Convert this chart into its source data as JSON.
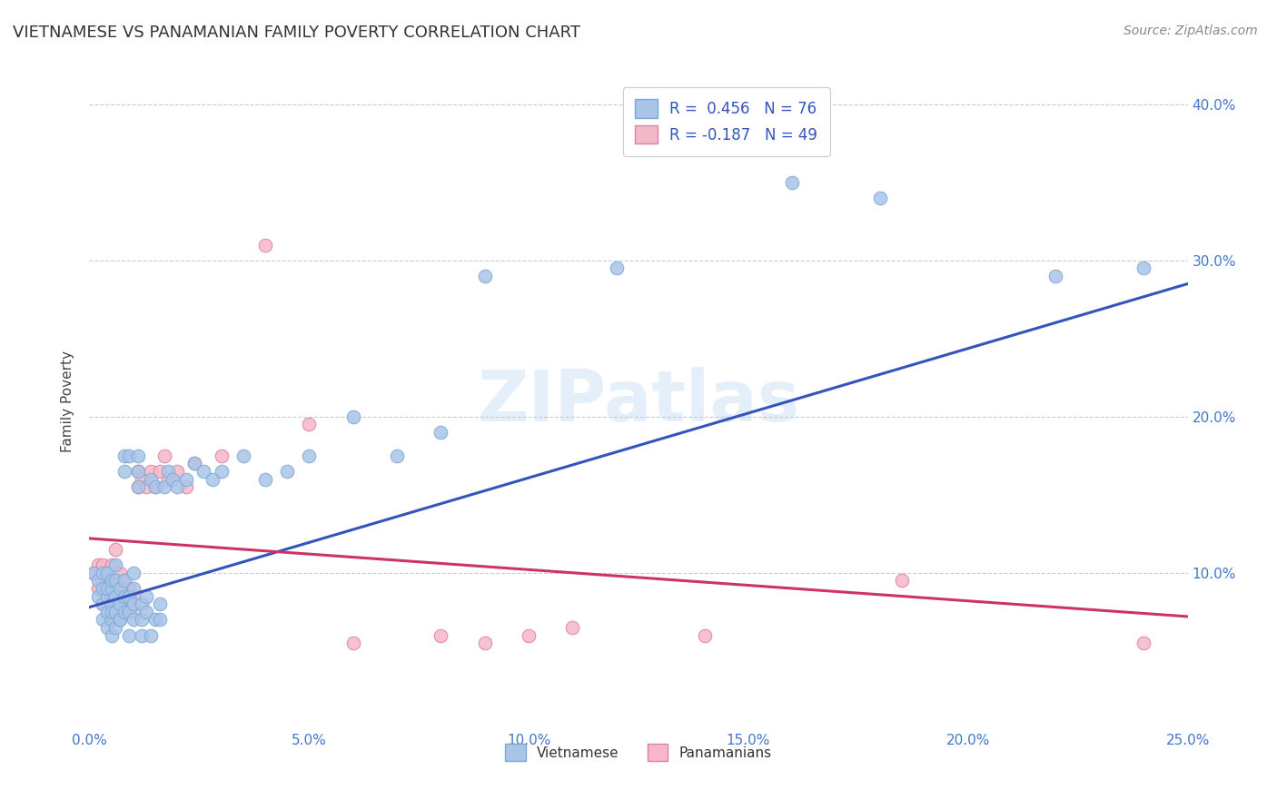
{
  "title": "VIETNAMESE VS PANAMANIAN FAMILY POVERTY CORRELATION CHART",
  "source": "Source: ZipAtlas.com",
  "ylabel": "Family Poverty",
  "xlim": [
    0.0,
    0.25
  ],
  "ylim": [
    0.0,
    0.42
  ],
  "xticks": [
    0.0,
    0.05,
    0.1,
    0.15,
    0.2,
    0.25
  ],
  "yticks": [
    0.0,
    0.1,
    0.2,
    0.3,
    0.4
  ],
  "xtick_labels": [
    "0.0%",
    "5.0%",
    "10.0%",
    "15.0%",
    "20.0%",
    "25.0%"
  ],
  "ytick_labels_right": [
    "",
    "10.0%",
    "20.0%",
    "30.0%",
    "40.0%"
  ],
  "viet_color": "#aac4e8",
  "viet_edge_color": "#7aaad4",
  "pan_color": "#f5b8c8",
  "pan_edge_color": "#e080a0",
  "line_viet_color": "#3355bb",
  "line_pan_color": "#cc3366",
  "R_viet": 0.456,
  "N_viet": 76,
  "R_pan": -0.187,
  "N_pan": 49,
  "watermark": "ZIPatlas",
  "viet_line_x0": 0.0,
  "viet_line_y0": 0.078,
  "viet_line_x1": 0.25,
  "viet_line_y1": 0.285,
  "pan_line_x0": 0.0,
  "pan_line_y0": 0.122,
  "pan_line_x1": 0.25,
  "pan_line_y1": 0.072,
  "viet_scatter_x": [
    0.001,
    0.002,
    0.002,
    0.003,
    0.003,
    0.003,
    0.003,
    0.004,
    0.004,
    0.004,
    0.004,
    0.004,
    0.005,
    0.005,
    0.005,
    0.005,
    0.005,
    0.005,
    0.006,
    0.006,
    0.006,
    0.006,
    0.006,
    0.007,
    0.007,
    0.007,
    0.007,
    0.008,
    0.008,
    0.008,
    0.008,
    0.008,
    0.009,
    0.009,
    0.009,
    0.009,
    0.01,
    0.01,
    0.01,
    0.01,
    0.011,
    0.011,
    0.011,
    0.012,
    0.012,
    0.012,
    0.013,
    0.013,
    0.014,
    0.014,
    0.015,
    0.015,
    0.016,
    0.016,
    0.017,
    0.018,
    0.019,
    0.02,
    0.022,
    0.024,
    0.026,
    0.028,
    0.03,
    0.035,
    0.04,
    0.045,
    0.05,
    0.06,
    0.07,
    0.08,
    0.09,
    0.12,
    0.16,
    0.18,
    0.22,
    0.24
  ],
  "viet_scatter_y": [
    0.1,
    0.085,
    0.095,
    0.08,
    0.09,
    0.1,
    0.07,
    0.075,
    0.085,
    0.09,
    0.1,
    0.065,
    0.06,
    0.07,
    0.08,
    0.09,
    0.095,
    0.075,
    0.065,
    0.075,
    0.085,
    0.095,
    0.105,
    0.07,
    0.08,
    0.09,
    0.07,
    0.075,
    0.085,
    0.095,
    0.165,
    0.175,
    0.06,
    0.075,
    0.085,
    0.175,
    0.07,
    0.08,
    0.09,
    0.1,
    0.155,
    0.165,
    0.175,
    0.06,
    0.07,
    0.08,
    0.075,
    0.085,
    0.06,
    0.16,
    0.07,
    0.155,
    0.07,
    0.08,
    0.155,
    0.165,
    0.16,
    0.155,
    0.16,
    0.17,
    0.165,
    0.16,
    0.165,
    0.175,
    0.16,
    0.165,
    0.175,
    0.2,
    0.175,
    0.19,
    0.29,
    0.295,
    0.35,
    0.34,
    0.29,
    0.295
  ],
  "pan_scatter_x": [
    0.001,
    0.002,
    0.002,
    0.003,
    0.003,
    0.003,
    0.004,
    0.004,
    0.004,
    0.005,
    0.005,
    0.005,
    0.005,
    0.006,
    0.006,
    0.006,
    0.007,
    0.007,
    0.007,
    0.008,
    0.008,
    0.008,
    0.009,
    0.009,
    0.01,
    0.01,
    0.011,
    0.011,
    0.012,
    0.013,
    0.014,
    0.015,
    0.016,
    0.017,
    0.018,
    0.02,
    0.022,
    0.024,
    0.03,
    0.04,
    0.05,
    0.06,
    0.08,
    0.09,
    0.1,
    0.11,
    0.14,
    0.185,
    0.24
  ],
  "pan_scatter_y": [
    0.1,
    0.09,
    0.105,
    0.08,
    0.095,
    0.105,
    0.09,
    0.1,
    0.085,
    0.075,
    0.085,
    0.095,
    0.105,
    0.085,
    0.095,
    0.115,
    0.08,
    0.09,
    0.1,
    0.075,
    0.085,
    0.095,
    0.08,
    0.09,
    0.075,
    0.085,
    0.155,
    0.165,
    0.16,
    0.155,
    0.165,
    0.155,
    0.165,
    0.175,
    0.16,
    0.165,
    0.155,
    0.17,
    0.175,
    0.31,
    0.195,
    0.055,
    0.06,
    0.055,
    0.06,
    0.065,
    0.06,
    0.095,
    0.055
  ]
}
